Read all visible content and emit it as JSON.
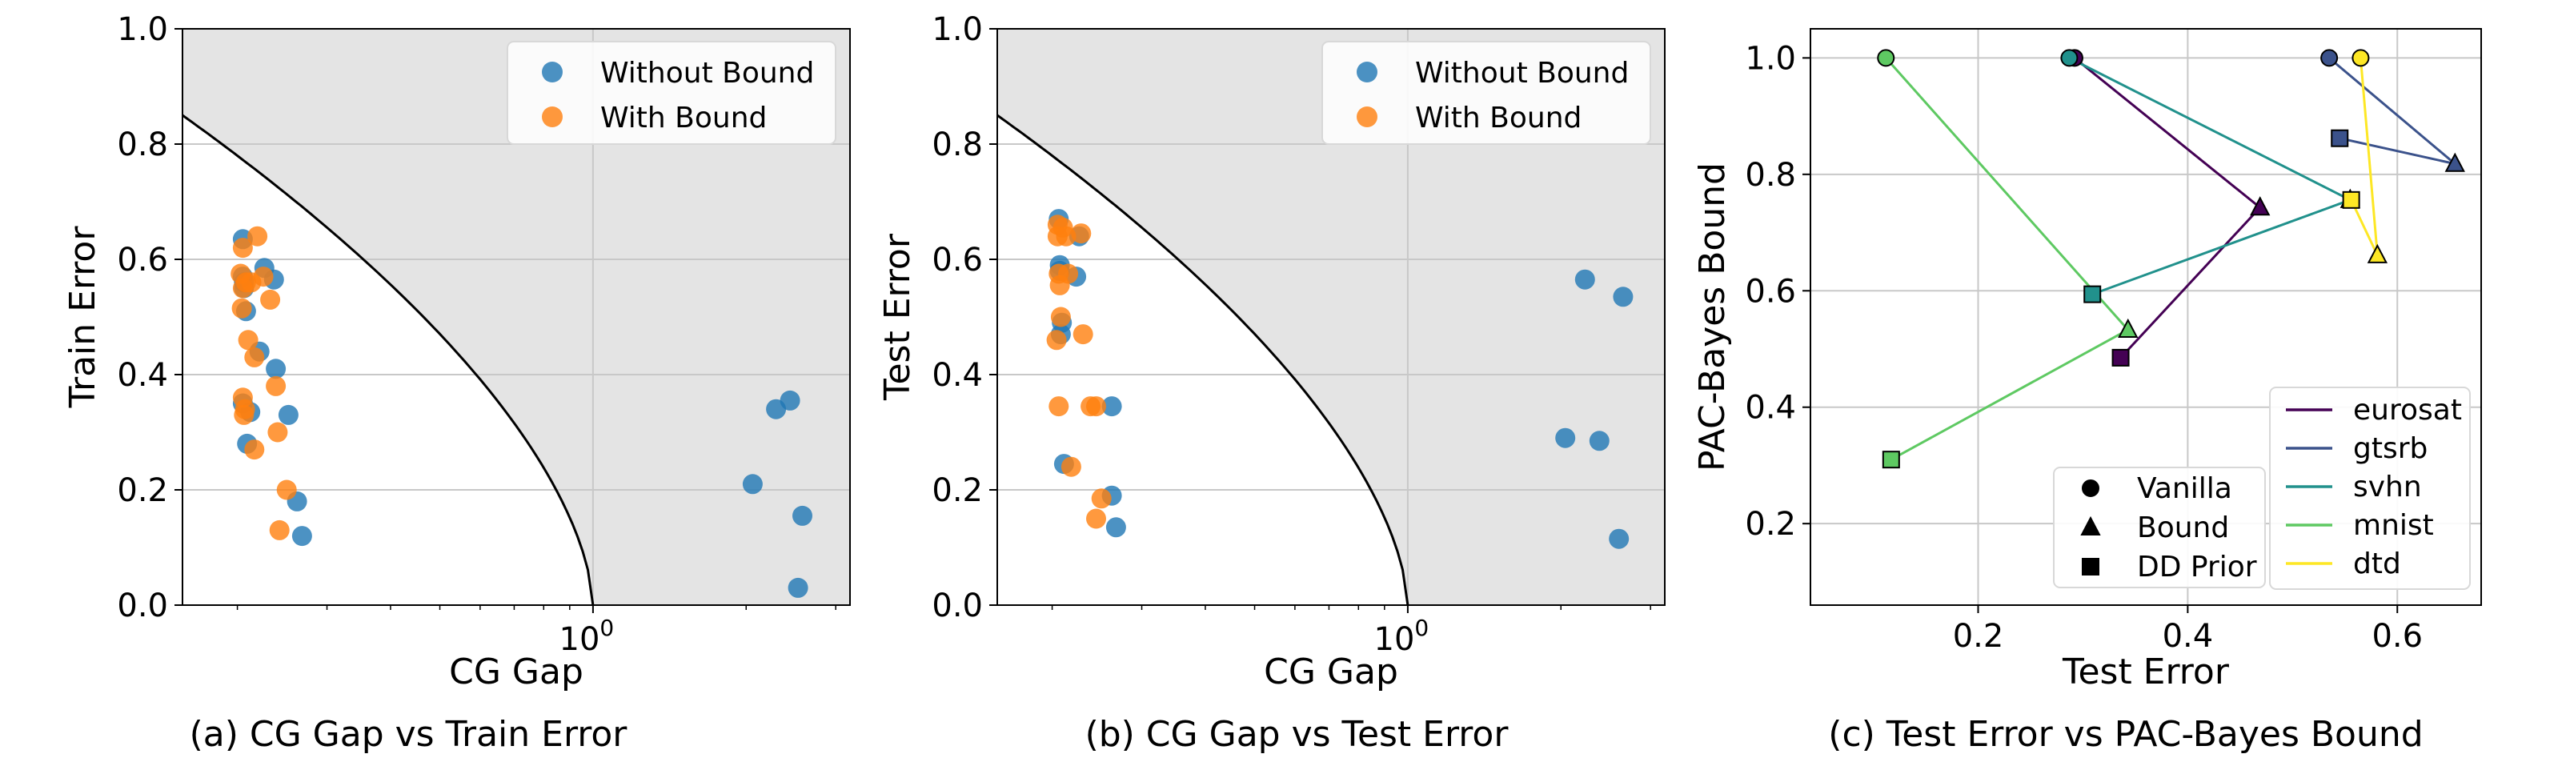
{
  "captions": [
    "(a) CG Gap vs Train Error",
    "(b) CG Gap vs Test Error",
    "(c) Test Error vs PAC-Bayes Bound"
  ],
  "colors": {
    "without_bound": "#1f77b4",
    "with_bound": "#ff7f0e",
    "shade": "#e4e4e4",
    "grid": "#c8c8c8",
    "eurosat": "#440154",
    "gtsrb": "#3b528b",
    "svhn": "#21918c",
    "mnist": "#5ec962",
    "dtd": "#fde725"
  },
  "chart_data": [
    {
      "type": "scatter",
      "title": "",
      "xlabel": "CG Gap",
      "ylabel": "Train Error",
      "xscale": "log",
      "xlim": [
        0.156,
        3.2
      ],
      "ylim": [
        0,
        1.0
      ],
      "x_ticks": [
        {
          "value": 1,
          "base": "10",
          "exp": "0"
        }
      ],
      "y_ticks": [
        "0.0",
        "0.2",
        "0.4",
        "0.6",
        "0.8",
        "1.0"
      ],
      "grid": true,
      "shaded_region": "above curve y = 0.85*(1-(log10(x)-log10(0.156))/(0-log10(0.156)))^0.6 up to 1.0",
      "legend_position": "top-right",
      "series": [
        {
          "name": "Without Bound",
          "x": [
            0.205,
            0.205,
            0.206,
            0.206,
            0.208,
            0.205,
            0.226,
            0.236,
            0.221,
            0.238,
            0.212,
            0.252,
            0.209,
            0.262,
            0.268,
            2.06,
            2.29,
            2.44,
            2.58,
            2.53
          ],
          "y": [
            0.635,
            0.57,
            0.56,
            0.55,
            0.51,
            0.35,
            0.585,
            0.565,
            0.44,
            0.41,
            0.335,
            0.33,
            0.28,
            0.18,
            0.12,
            0.21,
            0.34,
            0.355,
            0.155,
            0.03
          ]
        },
        {
          "name": "With Bound",
          "x": [
            0.205,
            0.203,
            0.208,
            0.205,
            0.204,
            0.219,
            0.225,
            0.232,
            0.213,
            0.21,
            0.216,
            0.238,
            0.205,
            0.206,
            0.24,
            0.216,
            0.25,
            0.242,
            0.207
          ],
          "y": [
            0.62,
            0.575,
            0.56,
            0.55,
            0.515,
            0.64,
            0.57,
            0.53,
            0.56,
            0.46,
            0.43,
            0.38,
            0.36,
            0.33,
            0.3,
            0.27,
            0.2,
            0.13,
            0.34
          ]
        }
      ]
    },
    {
      "type": "scatter",
      "title": "",
      "xlabel": "CG Gap",
      "ylabel": "Test Error",
      "xscale": "log",
      "xlim": [
        0.156,
        3.2
      ],
      "ylim": [
        0,
        1.0
      ],
      "x_ticks": [
        {
          "value": 1,
          "base": "10",
          "exp": "0"
        }
      ],
      "y_ticks": [
        "0.0",
        "0.2",
        "0.4",
        "0.6",
        "0.8",
        "1.0"
      ],
      "grid": true,
      "legend_position": "top-right",
      "series": [
        {
          "name": "Without Bound",
          "x": [
            0.206,
            0.207,
            0.207,
            0.209,
            0.208,
            0.226,
            0.223,
            0.262,
            0.211,
            0.262,
            0.267,
            2.23,
            2.65,
            2.04,
            2.38,
            2.6
          ],
          "y": [
            0.67,
            0.59,
            0.58,
            0.49,
            0.47,
            0.64,
            0.57,
            0.345,
            0.245,
            0.19,
            0.135,
            0.565,
            0.535,
            0.29,
            0.285,
            0.115
          ]
        },
        {
          "name": "With Bound",
          "x": [
            0.205,
            0.205,
            0.21,
            0.213,
            0.206,
            0.207,
            0.208,
            0.204,
            0.228,
            0.215,
            0.23,
            0.206,
            0.238,
            0.244,
            0.218,
            0.25,
            0.244
          ],
          "y": [
            0.64,
            0.66,
            0.655,
            0.64,
            0.575,
            0.555,
            0.5,
            0.46,
            0.645,
            0.575,
            0.47,
            0.345,
            0.345,
            0.345,
            0.24,
            0.185,
            0.15
          ]
        }
      ]
    },
    {
      "type": "line",
      "title": "",
      "xlabel": "Test Error",
      "ylabel": "PAC-Bayes Bound",
      "xlim": [
        0.04,
        0.68
      ],
      "ylim": [
        0.06,
        1.05
      ],
      "x_ticks": [
        "0.2",
        "0.4",
        "0.6"
      ],
      "y_ticks": [
        "0.2",
        "0.4",
        "0.6",
        "0.8",
        "1.0"
      ],
      "grid": true,
      "legend_position": "lower-right",
      "marker_legend": [
        "Vanilla",
        "Bound",
        "DD Prior"
      ],
      "series": [
        {
          "name": "eurosat",
          "vanilla": [
            0.292,
            1.0
          ],
          "bound": [
            0.469,
            0.743
          ],
          "dd_prior": [
            0.336,
            0.485
          ]
        },
        {
          "name": "gtsrb",
          "vanilla": [
            0.535,
            1.0
          ],
          "bound": [
            0.655,
            0.818
          ],
          "dd_prior": [
            0.545,
            0.862
          ]
        },
        {
          "name": "svhn",
          "vanilla": [
            0.287,
            1.0
          ],
          "bound": [
            0.555,
            0.756
          ],
          "dd_prior": [
            0.309,
            0.594
          ]
        },
        {
          "name": "mnist",
          "vanilla": [
            0.112,
            1.0
          ],
          "bound": [
            0.343,
            0.533
          ],
          "dd_prior": [
            0.117,
            0.31
          ]
        },
        {
          "name": "dtd",
          "vanilla": [
            0.565,
            1.0
          ],
          "bound": [
            0.581,
            0.661
          ],
          "dd_prior": [
            0.556,
            0.756
          ]
        }
      ]
    }
  ]
}
